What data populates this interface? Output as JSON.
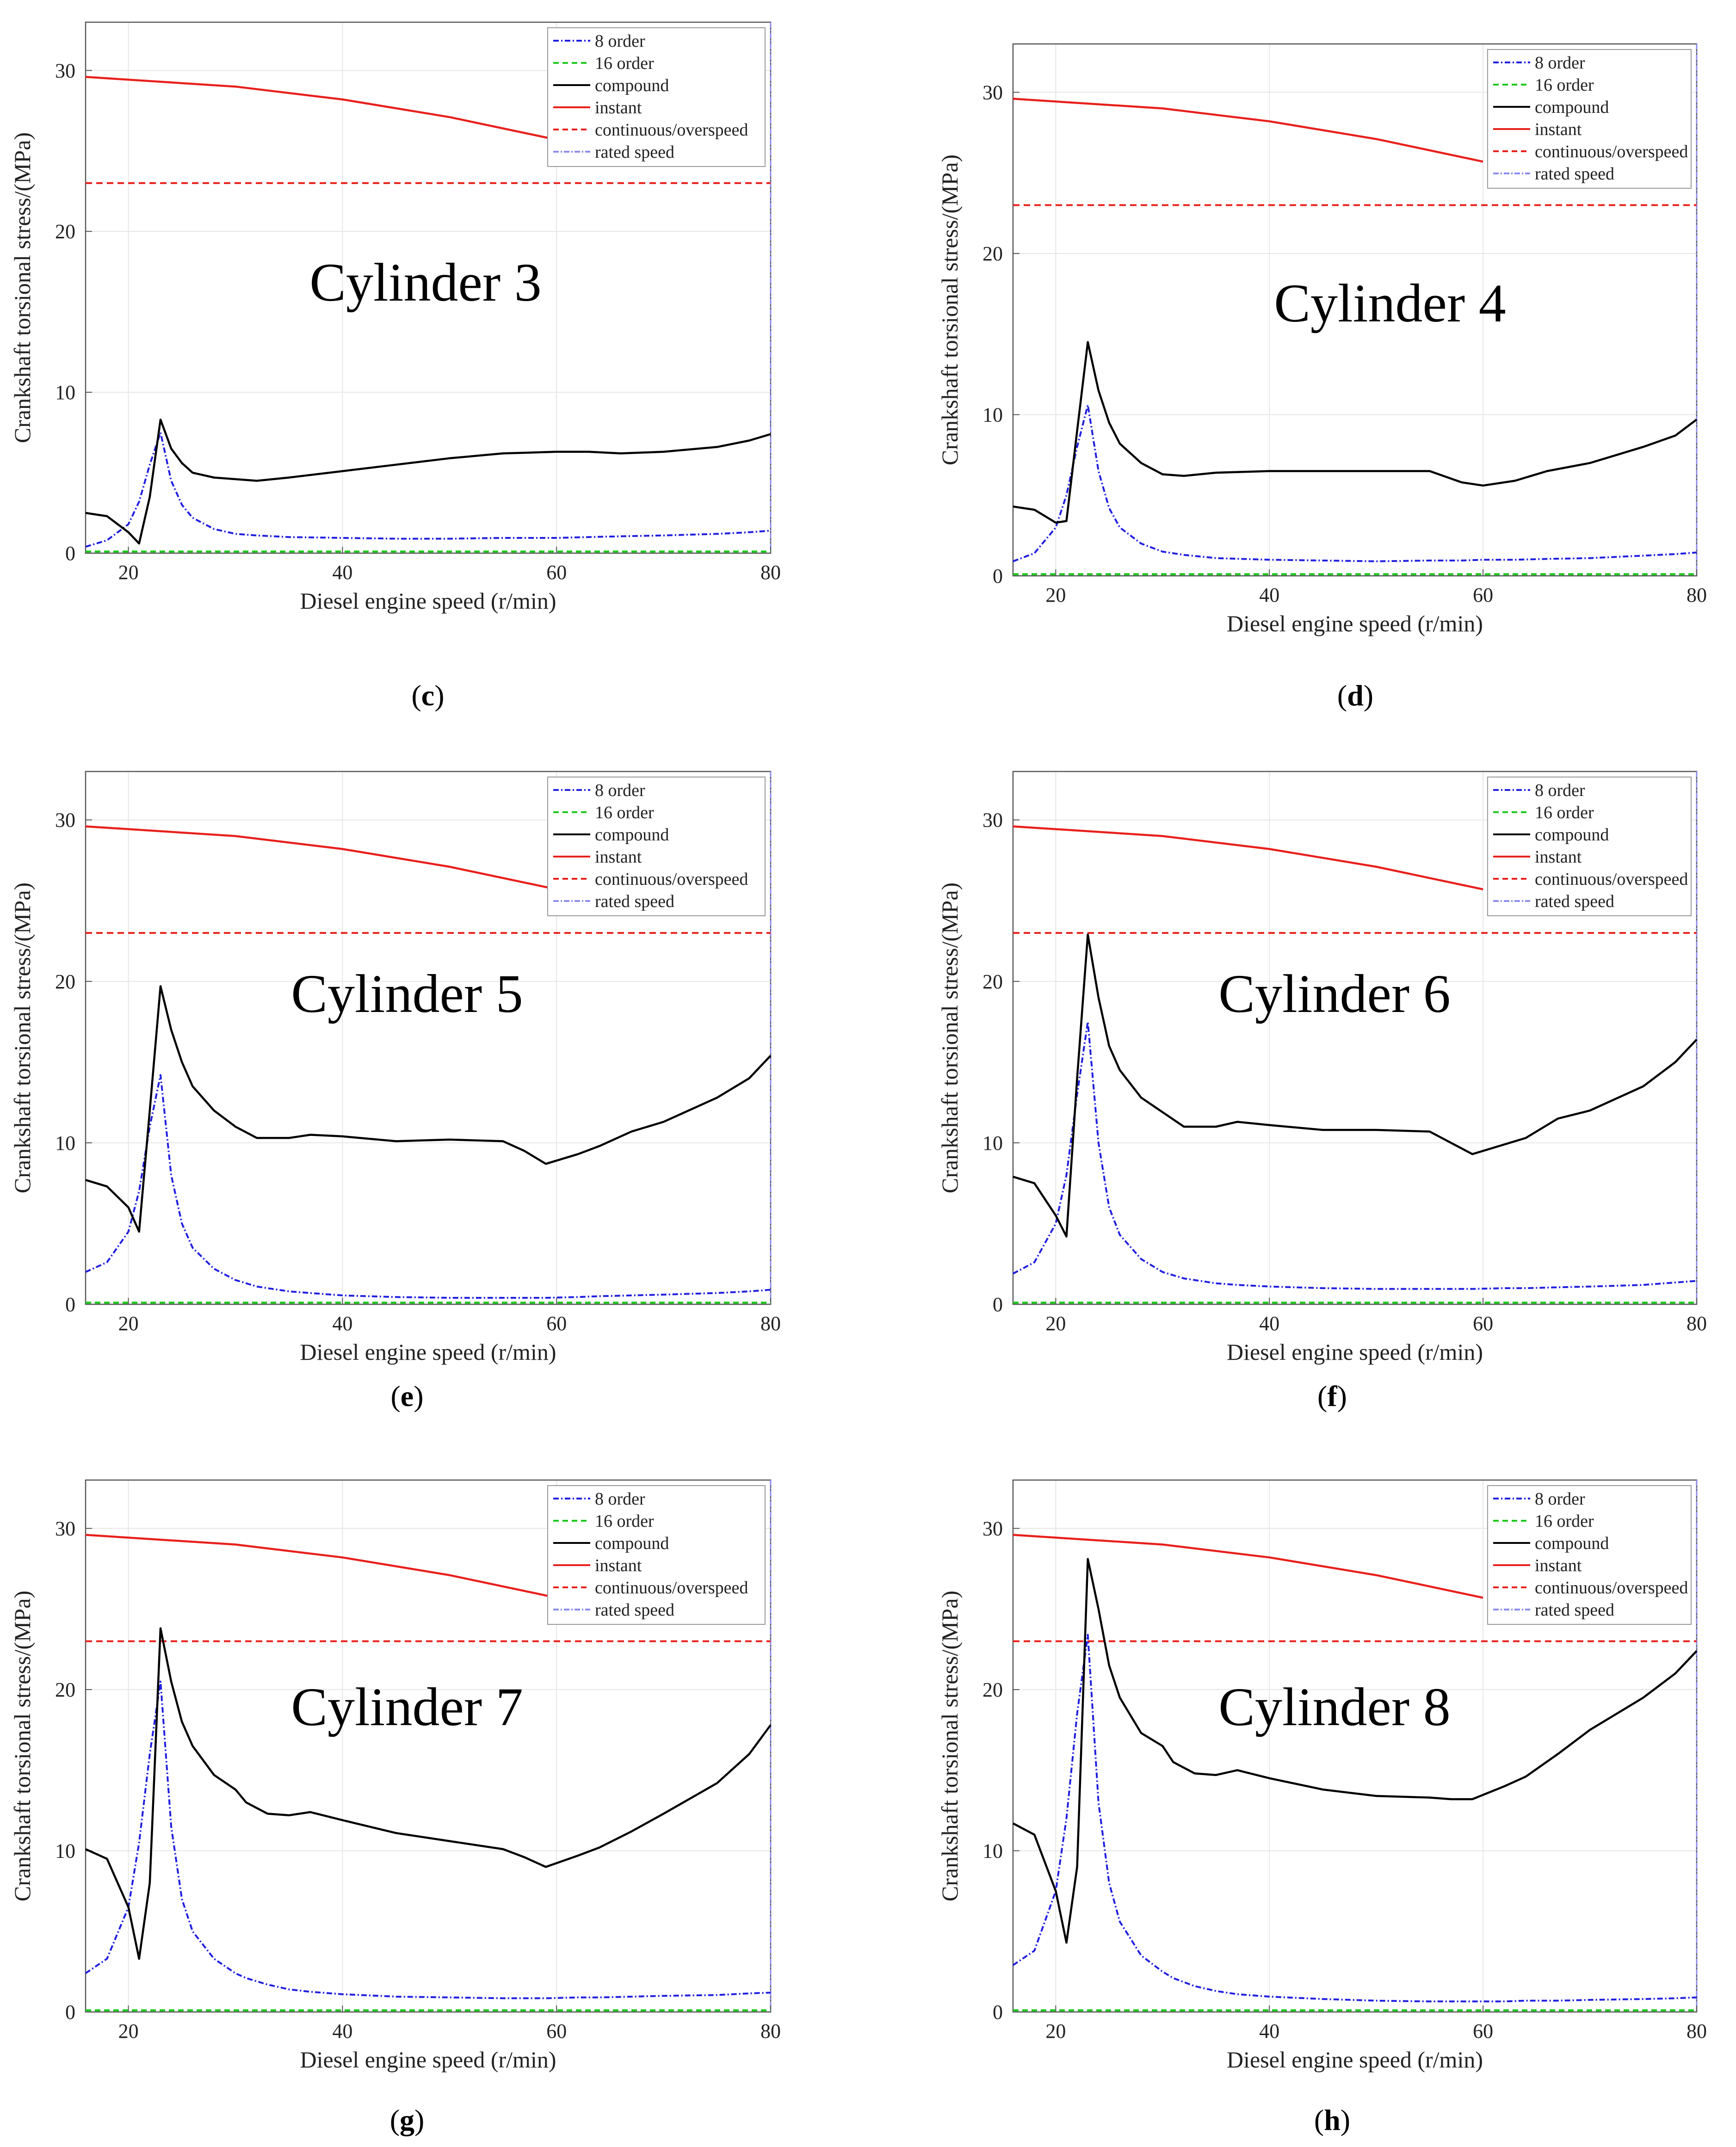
{
  "common": {
    "xlabel": "Diesel engine speed (r/min)",
    "ylabel": "Crankshaft torsional stress/(MPa)",
    "xlim": [
      16,
      80
    ],
    "ylim": [
      0,
      33
    ],
    "xticks": [
      20,
      40,
      60,
      80
    ],
    "yticks": [
      0,
      10,
      20,
      30
    ],
    "legend": [
      "8 order",
      "16 order",
      "compound",
      "instant",
      "continuous/overspeed",
      "rated speed"
    ],
    "legend_position": "top-right",
    "colors": {
      "8 order": "#1f1fe0",
      "16 order": "#1ec81e",
      "compound": "#000000",
      "instant": "#e8201c",
      "continuous/overspeed": "#e8201c",
      "rated speed": "#8c8cf0"
    }
  },
  "chart_data": [
    {
      "type": "line",
      "title": "Cylinder 3",
      "label": "(c)",
      "x": [
        16,
        18,
        20,
        21,
        22,
        23,
        24,
        25,
        26,
        28,
        30,
        32,
        35,
        40,
        45,
        50,
        55,
        60,
        63,
        66,
        70,
        75,
        78,
        80
      ],
      "series": [
        {
          "name": "compound",
          "values": [
            2.5,
            2.3,
            1.3,
            0.6,
            3.5,
            8.3,
            6.5,
            5.6,
            5.0,
            4.7,
            4.6,
            4.5,
            4.7,
            5.1,
            5.5,
            5.9,
            6.2,
            6.3,
            6.3,
            6.2,
            6.3,
            6.6,
            7.0,
            7.4
          ]
        },
        {
          "name": "8 order",
          "values": [
            0.4,
            0.8,
            1.8,
            3.2,
            5.5,
            7.5,
            4.5,
            3.0,
            2.2,
            1.5,
            1.2,
            1.1,
            1.0,
            0.95,
            0.9,
            0.9,
            0.95,
            0.95,
            1.0,
            1.05,
            1.1,
            1.2,
            1.3,
            1.4
          ]
        },
        {
          "name": "16 order",
          "values": [
            0.1,
            0.1,
            0.1,
            0.1,
            0.1,
            0.1,
            0.1,
            0.1,
            0.1,
            0.1,
            0.1,
            0.1,
            0.1,
            0.1,
            0.1,
            0.1,
            0.1,
            0.1,
            0.1,
            0.1,
            0.1,
            0.1,
            0.1,
            0.1
          ]
        }
      ],
      "instant": {
        "x": [
          16,
          30,
          40,
          50,
          60
        ],
        "values": [
          29.6,
          29.0,
          28.2,
          27.1,
          25.7
        ]
      },
      "continuous_overspeed": 23
    },
    {
      "type": "line",
      "title": "Cylinder 4",
      "label": "(d)",
      "x": [
        16,
        18,
        20,
        21,
        22,
        23,
        24,
        25,
        26,
        28,
        30,
        32,
        35,
        40,
        45,
        50,
        55,
        58,
        60,
        63,
        66,
        70,
        75,
        78,
        80
      ],
      "series": [
        {
          "name": "compound",
          "values": [
            4.3,
            4.1,
            3.3,
            3.4,
            9.0,
            14.5,
            11.5,
            9.5,
            8.2,
            7.0,
            6.3,
            6.2,
            6.4,
            6.5,
            6.5,
            6.5,
            6.5,
            5.8,
            5.6,
            5.9,
            6.5,
            7.0,
            8.0,
            8.7,
            9.7
          ]
        },
        {
          "name": "8 order",
          "values": [
            0.9,
            1.4,
            3.0,
            5.0,
            8.0,
            10.6,
            6.5,
            4.2,
            3.0,
            2.0,
            1.5,
            1.3,
            1.1,
            1.0,
            0.95,
            0.9,
            0.95,
            0.95,
            1.0,
            1.0,
            1.05,
            1.1,
            1.25,
            1.35,
            1.45
          ]
        },
        {
          "name": "16 order",
          "values": [
            0.1,
            0.1,
            0.1,
            0.1,
            0.1,
            0.1,
            0.1,
            0.1,
            0.1,
            0.1,
            0.1,
            0.1,
            0.1,
            0.1,
            0.1,
            0.1,
            0.1,
            0.1,
            0.1,
            0.1,
            0.1,
            0.1,
            0.1,
            0.1,
            0.1
          ]
        }
      ],
      "instant": {
        "x": [
          16,
          30,
          40,
          50,
          60
        ],
        "values": [
          29.6,
          29.0,
          28.2,
          27.1,
          25.7
        ]
      },
      "continuous_overspeed": 23
    },
    {
      "type": "line",
      "title": "Cylinder 5",
      "label": "(e)",
      "x": [
        16,
        18,
        20,
        21,
        22,
        23,
        24,
        25,
        26,
        28,
        30,
        32,
        35,
        37,
        40,
        45,
        50,
        55,
        57,
        59,
        62,
        64,
        67,
        70,
        75,
        78,
        80
      ],
      "series": [
        {
          "name": "compound",
          "values": [
            7.7,
            7.3,
            6.0,
            4.5,
            12.0,
            19.7,
            17.0,
            15.0,
            13.5,
            12.0,
            11.0,
            10.3,
            10.3,
            10.5,
            10.4,
            10.1,
            10.2,
            10.1,
            9.5,
            8.7,
            9.3,
            9.8,
            10.7,
            11.3,
            12.8,
            14.0,
            15.4
          ]
        },
        {
          "name": "8 order",
          "values": [
            2.0,
            2.6,
            4.5,
            7.0,
            11.0,
            14.2,
            8.0,
            5.0,
            3.5,
            2.2,
            1.5,
            1.1,
            0.8,
            0.7,
            0.55,
            0.45,
            0.4,
            0.4,
            0.4,
            0.4,
            0.45,
            0.5,
            0.55,
            0.6,
            0.7,
            0.8,
            0.9
          ]
        },
        {
          "name": "16 order",
          "values": [
            0.1,
            0.1,
            0.1,
            0.1,
            0.1,
            0.1,
            0.1,
            0.1,
            0.1,
            0.1,
            0.1,
            0.1,
            0.1,
            0.1,
            0.1,
            0.1,
            0.1,
            0.1,
            0.1,
            0.1,
            0.1,
            0.1,
            0.1,
            0.1,
            0.1,
            0.1,
            0.1
          ]
        }
      ],
      "instant": {
        "x": [
          16,
          30,
          40,
          50,
          60
        ],
        "values": [
          29.6,
          29.0,
          28.2,
          27.1,
          25.7
        ]
      },
      "continuous_overspeed": 23
    },
    {
      "type": "line",
      "title": "Cylinder 6",
      "label": "(f)",
      "x": [
        16,
        18,
        20,
        21,
        22,
        23,
        24,
        25,
        26,
        28,
        30,
        32,
        35,
        37,
        40,
        45,
        50,
        55,
        57,
        59,
        62,
        64,
        67,
        70,
        75,
        78,
        80
      ],
      "series": [
        {
          "name": "compound",
          "values": [
            7.9,
            7.5,
            5.5,
            4.2,
            14.0,
            22.9,
            19.0,
            16.0,
            14.5,
            12.8,
            11.9,
            11.0,
            11.0,
            11.3,
            11.1,
            10.8,
            10.8,
            10.7,
            10.0,
            9.3,
            9.9,
            10.3,
            11.5,
            12.0,
            13.5,
            15.0,
            16.4
          ]
        },
        {
          "name": "8 order",
          "values": [
            1.9,
            2.6,
            5.0,
            8.0,
            13.0,
            17.5,
            10.0,
            6.0,
            4.3,
            2.8,
            2.0,
            1.6,
            1.3,
            1.2,
            1.1,
            1.0,
            0.95,
            0.95,
            0.95,
            0.95,
            1.0,
            1.0,
            1.05,
            1.1,
            1.2,
            1.35,
            1.45
          ]
        },
        {
          "name": "16 order",
          "values": [
            0.1,
            0.1,
            0.1,
            0.1,
            0.1,
            0.1,
            0.1,
            0.1,
            0.1,
            0.1,
            0.1,
            0.1,
            0.1,
            0.1,
            0.1,
            0.1,
            0.1,
            0.1,
            0.1,
            0.1,
            0.1,
            0.1,
            0.1,
            0.1,
            0.1,
            0.1,
            0.1
          ]
        }
      ],
      "instant": {
        "x": [
          16,
          30,
          40,
          50,
          60
        ],
        "values": [
          29.6,
          29.0,
          28.2,
          27.1,
          25.7
        ]
      },
      "continuous_overspeed": 23
    },
    {
      "type": "line",
      "title": "Cylinder 7",
      "label": "(g)",
      "x": [
        16,
        18,
        20,
        21,
        22,
        23,
        24,
        25,
        26,
        28,
        30,
        31,
        33,
        35,
        37,
        40,
        45,
        50,
        55,
        57,
        59,
        62,
        64,
        67,
        70,
        75,
        78,
        80
      ],
      "series": [
        {
          "name": "compound",
          "values": [
            10.1,
            9.5,
            6.5,
            3.3,
            8.0,
            23.8,
            20.5,
            18.0,
            16.5,
            14.7,
            13.8,
            13.0,
            12.3,
            12.2,
            12.4,
            11.9,
            11.1,
            10.6,
            10.1,
            9.6,
            9.0,
            9.7,
            10.2,
            11.2,
            12.3,
            14.2,
            16.0,
            17.8
          ]
        },
        {
          "name": "8 order",
          "values": [
            2.4,
            3.3,
            6.5,
            10.5,
            16.0,
            20.5,
            11.5,
            7.0,
            5.0,
            3.3,
            2.4,
            2.1,
            1.7,
            1.4,
            1.25,
            1.1,
            0.95,
            0.9,
            0.85,
            0.85,
            0.85,
            0.9,
            0.9,
            0.95,
            1.0,
            1.05,
            1.15,
            1.2
          ]
        },
        {
          "name": "16 order",
          "values": [
            0.1,
            0.1,
            0.1,
            0.1,
            0.1,
            0.1,
            0.1,
            0.1,
            0.1,
            0.1,
            0.1,
            0.1,
            0.1,
            0.1,
            0.1,
            0.1,
            0.1,
            0.1,
            0.1,
            0.1,
            0.1,
            0.1,
            0.1,
            0.1,
            0.1,
            0.1,
            0.1,
            0.1
          ]
        }
      ],
      "instant": {
        "x": [
          16,
          30,
          40,
          50,
          60
        ],
        "values": [
          29.6,
          29.0,
          28.2,
          27.1,
          25.7
        ]
      },
      "continuous_overspeed": 23
    },
    {
      "type": "line",
      "title": "Cylinder 8",
      "label": "(h)",
      "x": [
        16,
        18,
        20,
        21,
        22,
        23,
        24,
        25,
        26,
        28,
        30,
        31,
        33,
        35,
        37,
        40,
        45,
        50,
        55,
        57,
        59,
        62,
        64,
        67,
        70,
        75,
        78,
        80
      ],
      "series": [
        {
          "name": "compound",
          "values": [
            11.7,
            11.0,
            7.5,
            4.3,
            9.0,
            28.1,
            25.0,
            21.5,
            19.5,
            17.3,
            16.5,
            15.5,
            14.8,
            14.7,
            15.0,
            14.5,
            13.8,
            13.4,
            13.3,
            13.2,
            13.2,
            14.0,
            14.6,
            16.0,
            17.5,
            19.5,
            21.0,
            22.4
          ]
        },
        {
          "name": "8 order",
          "values": [
            2.9,
            3.8,
            7.5,
            12.0,
            18.5,
            23.4,
            13.0,
            8.0,
            5.6,
            3.5,
            2.5,
            2.1,
            1.6,
            1.3,
            1.1,
            0.95,
            0.8,
            0.7,
            0.65,
            0.65,
            0.65,
            0.65,
            0.7,
            0.7,
            0.75,
            0.8,
            0.85,
            0.9
          ]
        },
        {
          "name": "16 order",
          "values": [
            0.1,
            0.1,
            0.1,
            0.1,
            0.1,
            0.1,
            0.1,
            0.1,
            0.1,
            0.1,
            0.1,
            0.1,
            0.1,
            0.1,
            0.1,
            0.1,
            0.1,
            0.1,
            0.1,
            0.1,
            0.1,
            0.1,
            0.1,
            0.1,
            0.1,
            0.1,
            0.1,
            0.1
          ]
        }
      ],
      "instant": {
        "x": [
          16,
          30,
          40,
          50,
          60
        ],
        "values": [
          29.6,
          29.0,
          28.2,
          27.1,
          25.7
        ]
      },
      "continuous_overspeed": 23
    }
  ]
}
